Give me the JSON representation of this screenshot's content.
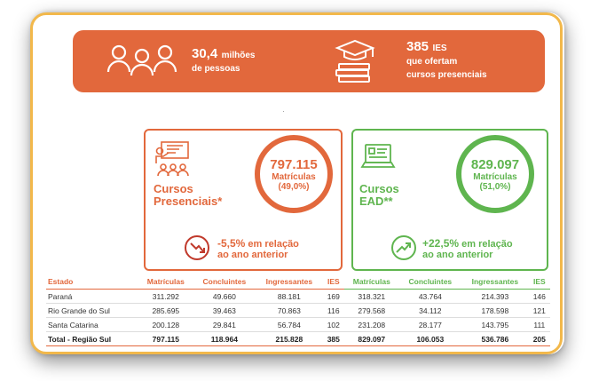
{
  "banner": {
    "population_value": "30,4",
    "population_unit": "milhões",
    "population_label": "de pessoas",
    "ies_value": "385",
    "ies_unit": "IES",
    "ies_label_1": "que ofertam",
    "ies_label_2": "cursos presenciais"
  },
  "presencial": {
    "title_1": "Cursos",
    "title_2": "Presenciais*",
    "matriculas_value": "797.115",
    "matriculas_label": "Matrículas",
    "matriculas_share": "(49,0%)",
    "trend_pct": "-5,5%",
    "trend_text_1": "em relação",
    "trend_text_2": "ao ano anterior"
  },
  "ead": {
    "title_1": "Cursos",
    "title_2": "EAD**",
    "matriculas_value": "829.097",
    "matriculas_label": "Matrículas",
    "matriculas_share": "(51,0%)",
    "trend_pct": "+22,5%",
    "trend_text_1": "em relação",
    "trend_text_2": "ao ano anterior"
  },
  "table": {
    "headers": [
      "Estado",
      "Matrículas",
      "Concluintes",
      "Ingressantes",
      "IES",
      "Matrículas",
      "Concluintes",
      "Ingressantes",
      "IES"
    ],
    "rows": [
      [
        "Paraná",
        "311.292",
        "49.660",
        "88.181",
        "169",
        "318.321",
        "43.764",
        "214.393",
        "146"
      ],
      [
        "Rio Grande do Sul",
        "285.695",
        "39.463",
        "70.863",
        "116",
        "279.568",
        "34.112",
        "178.598",
        "121"
      ],
      [
        "Santa Catarina",
        "200.128",
        "29.841",
        "56.784",
        "102",
        "231.208",
        "28.177",
        "143.795",
        "111"
      ],
      [
        "Total - Região Sul",
        "797.115",
        "118.964",
        "215.828",
        "385",
        "829.097",
        "106.053",
        "536.786",
        "205"
      ]
    ]
  },
  "colors": {
    "orange": "#e2683c",
    "green": "#5fb54f",
    "border_yellow": "#f2b84b"
  },
  "icons": [
    "people-icon",
    "graduation-books-icon",
    "classroom-presentation-icon",
    "laptop-icon",
    "trend-down-icon",
    "trend-up-icon"
  ]
}
